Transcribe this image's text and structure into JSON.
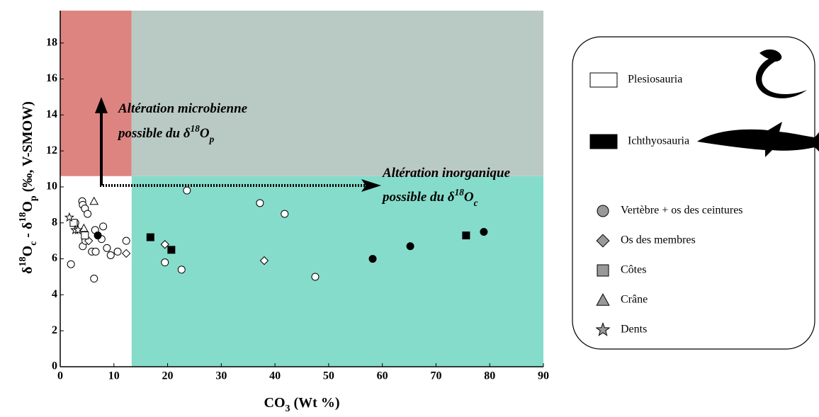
{
  "chart_data": {
    "type": "scatter",
    "x_label": [
      {
        "text": "CO"
      },
      {
        "text": "3",
        "shift": "sub"
      },
      {
        "text": " (Wt %)"
      }
    ],
    "y_label": [
      {
        "text": "δ"
      },
      {
        "text": "18",
        "shift": "sup"
      },
      {
        "text": "O"
      },
      {
        "text": "c",
        "shift": "sub"
      },
      {
        "text": " - δ"
      },
      {
        "text": "18",
        "shift": "sup"
      },
      {
        "text": "O"
      },
      {
        "text": "p",
        "shift": "sub"
      },
      {
        "text": " (‰, V-SMOW)"
      }
    ],
    "xlim": [
      0,
      90
    ],
    "xticks": [
      0,
      10,
      20,
      30,
      40,
      50,
      60,
      70,
      80,
      90
    ],
    "ylim": [
      0,
      19.8
    ],
    "yticks": [
      0,
      2,
      4,
      6,
      8,
      10,
      12,
      14,
      16,
      18
    ],
    "regions": [
      {
        "x": [
          0,
          13.3
        ],
        "y": [
          10.6,
          19.8
        ],
        "color": "#dd8481"
      },
      {
        "x": [
          13.3,
          90
        ],
        "y": [
          10.6,
          19.8
        ],
        "color": "#b9c9c3"
      },
      {
        "x": [
          13.3,
          90
        ],
        "y": [
          0,
          10.6
        ],
        "color": "#86dccb"
      }
    ],
    "annotations": [
      {
        "lines": [
          [
            {
              "text": "Altération microbienne"
            }
          ],
          [
            {
              "text": "possible du δ"
            },
            {
              "text": "18",
              "shift": "sup"
            },
            {
              "text": "O"
            },
            {
              "text": "p",
              "shift": "sub"
            }
          ]
        ]
      },
      {
        "lines": [
          [
            {
              "text": "Altération inorganique"
            }
          ],
          [
            {
              "text": "possible du δ"
            },
            {
              "text": "18",
              "shift": "sup"
            },
            {
              "text": "O"
            },
            {
              "text": "c",
              "shift": "sub"
            }
          ]
        ]
      }
    ],
    "groups": [
      {
        "name": "Plesiosauria",
        "color": "#ffffff"
      },
      {
        "name": "Ichthyosauria",
        "color": "#000000"
      }
    ],
    "shapes": [
      {
        "name": "Vertèbre + os des ceintures",
        "symbol": "circle"
      },
      {
        "name": "Os des membres",
        "symbol": "diamond"
      },
      {
        "name": "Côtes",
        "symbol": "square"
      },
      {
        "name": "Crâne",
        "symbol": "triangle"
      },
      {
        "name": "Dents",
        "symbol": "star"
      }
    ],
    "series": [
      {
        "group": 0,
        "shape": 0,
        "x": [
          2.0,
          2.8,
          2.5,
          4.1,
          4.2,
          4.6,
          5.1,
          4.2,
          4.7,
          5.9,
          6.6,
          6.3,
          6.5,
          8.0,
          7.7,
          8.7,
          9.4,
          10.7,
          12.3,
          23.6,
          37.2,
          41.8,
          47.5,
          19.5,
          22.6
        ],
        "y": [
          5.7,
          8.0,
          8.0,
          9.2,
          9.0,
          8.8,
          8.5,
          6.7,
          7.0,
          6.4,
          6.4,
          4.9,
          7.6,
          7.8,
          7.1,
          6.6,
          6.2,
          6.4,
          7.0,
          9.8,
          9.1,
          8.5,
          5.0,
          5.8,
          5.4
        ]
      },
      {
        "group": 0,
        "shape": 1,
        "x": [
          19.5,
          38.0,
          12.3,
          5.3
        ],
        "y": [
          6.8,
          5.9,
          6.3,
          7.0
        ]
      },
      {
        "group": 0,
        "shape": 2,
        "x": [
          2.5,
          4.6
        ],
        "y": [
          8.0,
          7.3
        ]
      },
      {
        "group": 0,
        "shape": 3,
        "x": [
          6.3,
          4.4
        ],
        "y": [
          9.2,
          7.7
        ]
      },
      {
        "group": 0,
        "shape": 4,
        "x": [
          1.7,
          2.8,
          3.3
        ],
        "y": [
          8.3,
          7.6,
          7.6
        ]
      },
      {
        "group": 1,
        "shape": 0,
        "x": [
          7.0,
          58.2,
          65.2,
          78.9
        ],
        "y": [
          7.3,
          6.0,
          6.7,
          7.5
        ]
      },
      {
        "group": 1,
        "shape": 2,
        "x": [
          16.8,
          20.7,
          75.6
        ],
        "y": [
          7.2,
          6.5,
          7.3
        ]
      }
    ]
  }
}
